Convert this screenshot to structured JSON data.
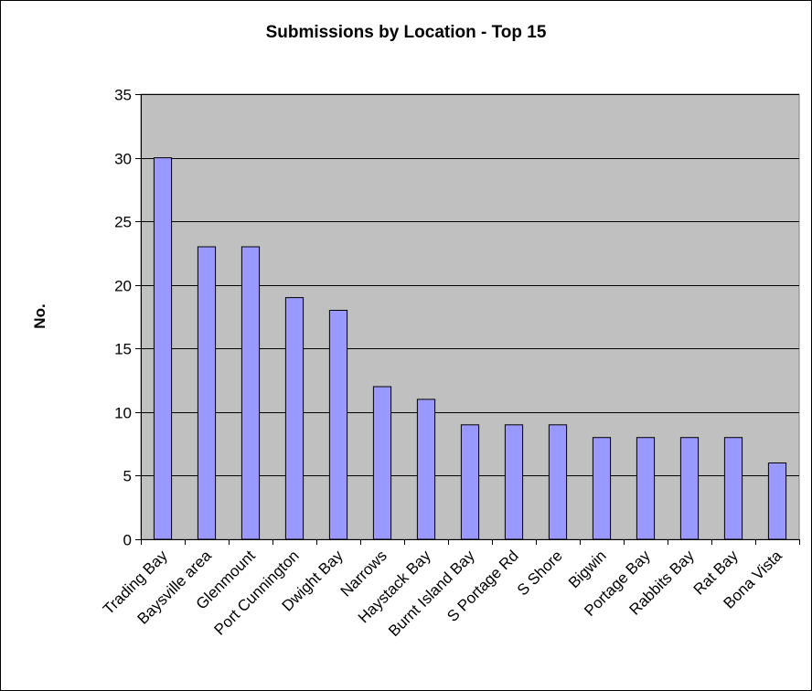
{
  "chart_data": {
    "type": "bar",
    "title": "Submissions by Location - Top 15",
    "xlabel": "",
    "ylabel": "No.",
    "ylim": [
      0,
      35
    ],
    "yticks": [
      0,
      5,
      10,
      15,
      20,
      25,
      30,
      35
    ],
    "grid": true,
    "legend": "none",
    "categories": [
      "Trading Bay",
      "Baysville area",
      "Glenmount",
      "Port Cunnington",
      "Dwight Bay",
      "Narrows",
      "Haystack Bay",
      "Burnt Island Bay",
      "S Portage Rd",
      "S Shore",
      "Bigwin",
      "Portage Bay",
      "Rabbits Bay",
      "Rat Bay",
      "Bona Vista"
    ],
    "values": [
      30,
      23,
      23,
      19,
      18,
      12,
      11,
      9,
      9,
      9,
      8,
      8,
      8,
      8,
      6
    ],
    "colors": {
      "bar": "#9999ff",
      "plot_bg": "#c0c0c0",
      "grid": "#000000"
    }
  }
}
